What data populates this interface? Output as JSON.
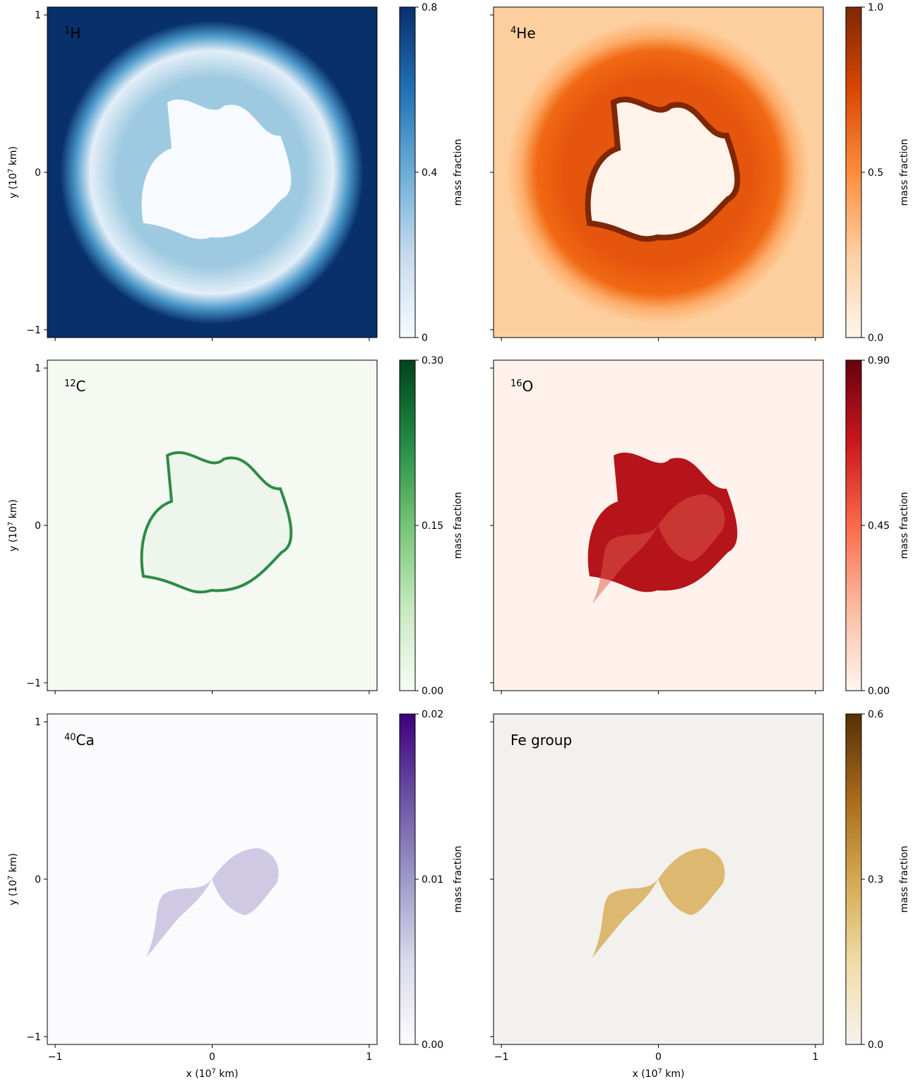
{
  "chart_data": [
    {
      "type": "heatmap",
      "label": {
        "isotope": "1",
        "symbol": "H"
      },
      "label_color": "#ffffff",
      "colormap": [
        "#f7fbff",
        "#c6dbef",
        "#6baed6",
        "#2171b5",
        "#08306b"
      ],
      "clim": [
        0,
        0.8
      ],
      "cticks": [
        0,
        0.4,
        0.8
      ],
      "clabel": "mass fraction",
      "xlim": [
        -1.05,
        1.05
      ],
      "ylim": [
        -1.05,
        1.05
      ],
      "xticks": [
        {
          "value": -1,
          "label": "−1"
        },
        0,
        1
      ],
      "yticks": [
        {
          "value": -1,
          "label": "−1"
        },
        0,
        1
      ],
      "ylabel": {
        "prefix": "y (10",
        "sup": "7",
        "suffix": " km)"
      }
    },
    {
      "type": "heatmap",
      "label": {
        "isotope": "4",
        "symbol": "He"
      },
      "label_color": "#000000",
      "colormap": [
        "#fff5eb",
        "#fdd0a2",
        "#fd8d3c",
        "#d94801",
        "#7f2704"
      ],
      "clim": [
        0,
        1
      ],
      "cticks": [
        {
          "value": 0,
          "label": "0.0"
        },
        {
          "value": 0.5,
          "label": "0.5"
        },
        {
          "value": 1,
          "label": "1.0"
        }
      ],
      "clabel": "mass fraction",
      "xlim": [
        -1.05,
        1.05
      ],
      "ylim": [
        -1.05,
        1.05
      ],
      "xticks": [
        -1,
        0,
        1
      ],
      "yticks": [
        -1,
        0,
        1
      ]
    },
    {
      "type": "heatmap",
      "label": {
        "isotope": "12",
        "symbol": "C"
      },
      "label_color": "#000000",
      "colormap": [
        "#f7fcf5",
        "#c7e9c0",
        "#74c476",
        "#238b45",
        "#00441b"
      ],
      "clim": [
        0,
        0.3
      ],
      "cticks": [
        {
          "value": 0,
          "label": "0.00"
        },
        0.15,
        {
          "value": 0.3,
          "label": "0.30"
        }
      ],
      "clabel": "mass fraction",
      "xlim": [
        -1.05,
        1.05
      ],
      "ylim": [
        -1.05,
        1.05
      ],
      "xticks": [
        -1,
        0,
        1
      ],
      "yticks": [
        {
          "value": -1,
          "label": "−1"
        },
        0,
        1
      ],
      "ylabel": {
        "prefix": "y (10",
        "sup": "7",
        "suffix": " km)"
      }
    },
    {
      "type": "heatmap",
      "label": {
        "isotope": "16",
        "symbol": "O"
      },
      "label_color": "#000000",
      "colormap": [
        "#fff5f0",
        "#fcbba1",
        "#fb6a4a",
        "#cb181d",
        "#67000d"
      ],
      "clim": [
        0,
        0.9
      ],
      "cticks": [
        {
          "value": 0,
          "label": "0.00"
        },
        0.45,
        {
          "value": 0.9,
          "label": "0.90"
        }
      ],
      "clabel": "mass fraction",
      "xlim": [
        -1.05,
        1.05
      ],
      "ylim": [
        -1.05,
        1.05
      ],
      "xticks": [
        -1,
        0,
        1
      ],
      "yticks": [
        -1,
        0,
        1
      ]
    },
    {
      "type": "heatmap",
      "label": {
        "isotope": "40",
        "symbol": "Ca"
      },
      "label_color": "#000000",
      "colormap": [
        "#fcfbfd",
        "#dadaeb",
        "#9e9ac8",
        "#6a51a3",
        "#3f007d"
      ],
      "clim": [
        0,
        0.02
      ],
      "cticks": [
        {
          "value": 0,
          "label": "0.00"
        },
        0.01,
        0.02
      ],
      "clabel": "mass fraction",
      "xlim": [
        -1.05,
        1.05
      ],
      "ylim": [
        -1.05,
        1.05
      ],
      "xticks": [
        {
          "value": -1,
          "label": "−1"
        },
        0,
        1
      ],
      "yticks": [
        {
          "value": -1,
          "label": "−1"
        },
        0,
        1
      ],
      "xlabel": {
        "prefix": "x (10",
        "sup": "7",
        "suffix": " km)"
      },
      "ylabel": {
        "prefix": "y (10",
        "sup": "7",
        "suffix": " km)"
      }
    },
    {
      "type": "heatmap",
      "label": {
        "text": "Fe group"
      },
      "label_color": "#000000",
      "colormap": [
        "#f5f3ee",
        "#f0dca6",
        "#d3a850",
        "#a8691a",
        "#543005"
      ],
      "clim": [
        0,
        0.6
      ],
      "cticks": [
        {
          "value": 0,
          "label": "0.0"
        },
        0.3,
        0.6
      ],
      "clabel": "mass fraction",
      "xlim": [
        -1.05,
        1.05
      ],
      "ylim": [
        -1.05,
        1.05
      ],
      "xticks": [
        {
          "value": -1,
          "label": "−1"
        },
        0,
        1
      ],
      "yticks": [
        -1,
        0,
        1
      ],
      "xlabel": {
        "prefix": "x (10",
        "sup": "7",
        "suffix": " km)"
      }
    }
  ]
}
